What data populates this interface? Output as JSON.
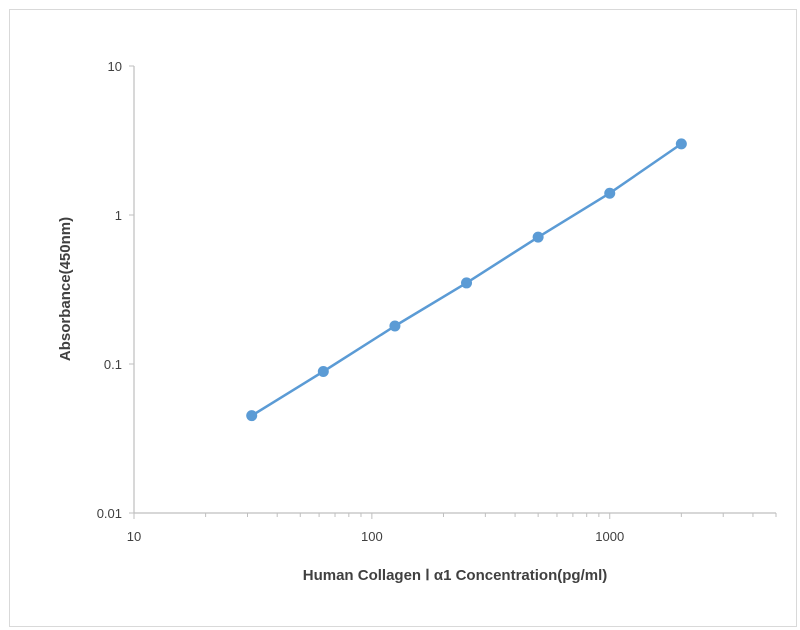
{
  "chart_data": {
    "type": "line",
    "title": "",
    "xlabel": "Human Collagen Ⅰ α1 Concentration(pg/ml)",
    "ylabel": "Absorbance(450nm)",
    "xscale": "log",
    "yscale": "log",
    "xlim": [
      10,
      5000
    ],
    "ylim": [
      0.01,
      10
    ],
    "grid": false,
    "legend": "none",
    "x_ticks": [
      10,
      100,
      1000
    ],
    "x_tick_labels": [
      "10",
      "100",
      "1000"
    ],
    "y_ticks": [
      0.01,
      0.1,
      1,
      10
    ],
    "y_tick_labels": [
      "0.01",
      "0.1",
      "1",
      "10"
    ],
    "series": [
      {
        "x": [
          31.25,
          62.5,
          125,
          250,
          500,
          1000,
          2000
        ],
        "y": [
          0.045,
          0.089,
          0.18,
          0.35,
          0.71,
          1.4,
          3.0
        ]
      }
    ],
    "colors": {
      "series": "#5b9bd5",
      "axis": "#bfbfbf",
      "text": "#404040"
    }
  }
}
